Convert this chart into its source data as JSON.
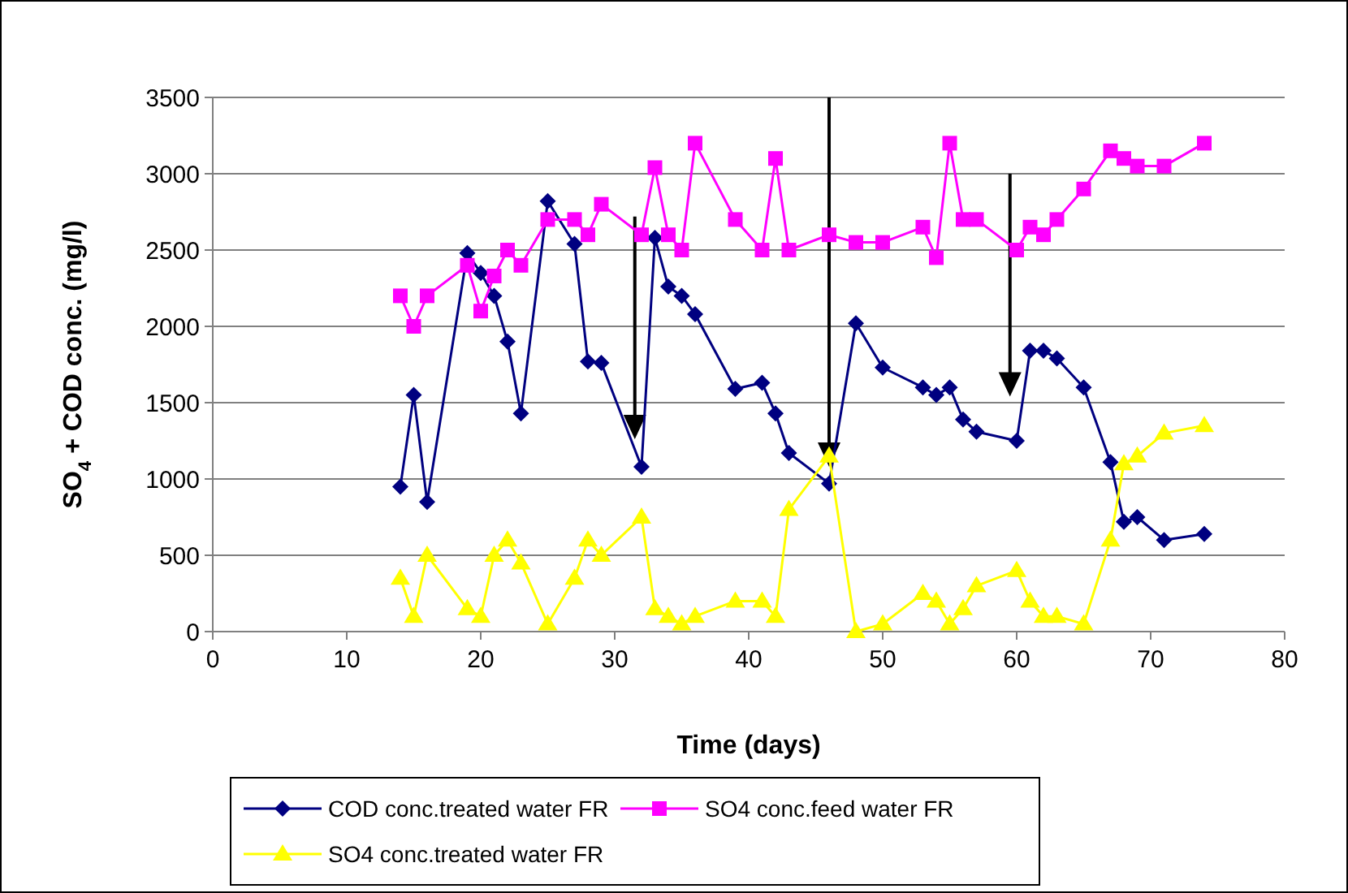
{
  "chart_data": {
    "type": "line",
    "xlabel": "Time (days)",
    "ylabel": "SO$_{4}$ + COD conc. (mg/l)",
    "x": [
      14,
      15,
      16,
      19,
      20,
      21,
      22,
      23,
      25,
      27,
      28,
      29,
      32,
      33,
      34,
      35,
      36,
      39,
      41,
      42,
      43,
      46,
      48,
      50,
      53,
      54,
      55,
      56,
      57,
      60,
      61,
      62,
      63,
      65,
      67,
      68,
      69,
      71,
      74
    ],
    "xlim": [
      0,
      80
    ],
    "xticks": [
      0,
      10,
      20,
      30,
      40,
      50,
      60,
      70,
      80
    ],
    "ylim": [
      0,
      3500
    ],
    "yticks": [
      0,
      500,
      1000,
      1500,
      2000,
      2500,
      3000,
      3500
    ],
    "grid": "y",
    "legend": "bottom",
    "series": [
      {
        "name": "COD conc.treated water FR",
        "color": "#000080",
        "marker": "diamond",
        "values": [
          950,
          1550,
          850,
          2480,
          2350,
          2200,
          1900,
          1430,
          2820,
          2540,
          1770,
          1760,
          1080,
          2580,
          2260,
          2200,
          2080,
          1590,
          1630,
          1430,
          1170,
          970,
          2020,
          1730,
          1600,
          1550,
          1600,
          1390,
          1310,
          1250,
          1840,
          1840,
          1790,
          1600,
          1110,
          720,
          750,
          600,
          640
        ]
      },
      {
        "name": "SO4 conc.feed water FR",
        "color": "#ff00ff",
        "marker": "square",
        "values": [
          2200,
          2000,
          2200,
          2400,
          2100,
          2330,
          2500,
          2400,
          2700,
          2700,
          2600,
          2800,
          2600,
          3040,
          2600,
          2500,
          3200,
          2700,
          2500,
          3100,
          2500,
          2600,
          2550,
          2550,
          2650,
          2450,
          3200,
          2700,
          2700,
          2500,
          2650,
          2600,
          2700,
          2900,
          3150,
          3100,
          3050,
          3050,
          3200
        ]
      },
      {
        "name": "SO4 conc.treated water FR",
        "color": "#ffff00",
        "marker": "triangle",
        "values": [
          350,
          100,
          500,
          150,
          100,
          500,
          600,
          450,
          50,
          350,
          600,
          500,
          750,
          150,
          100,
          50,
          100,
          200,
          200,
          100,
          800,
          1150,
          0,
          50,
          250,
          200,
          50,
          150,
          300,
          400,
          200,
          100,
          100,
          50,
          600,
          1100,
          1150,
          1300,
          1350
        ]
      }
    ]
  }
}
